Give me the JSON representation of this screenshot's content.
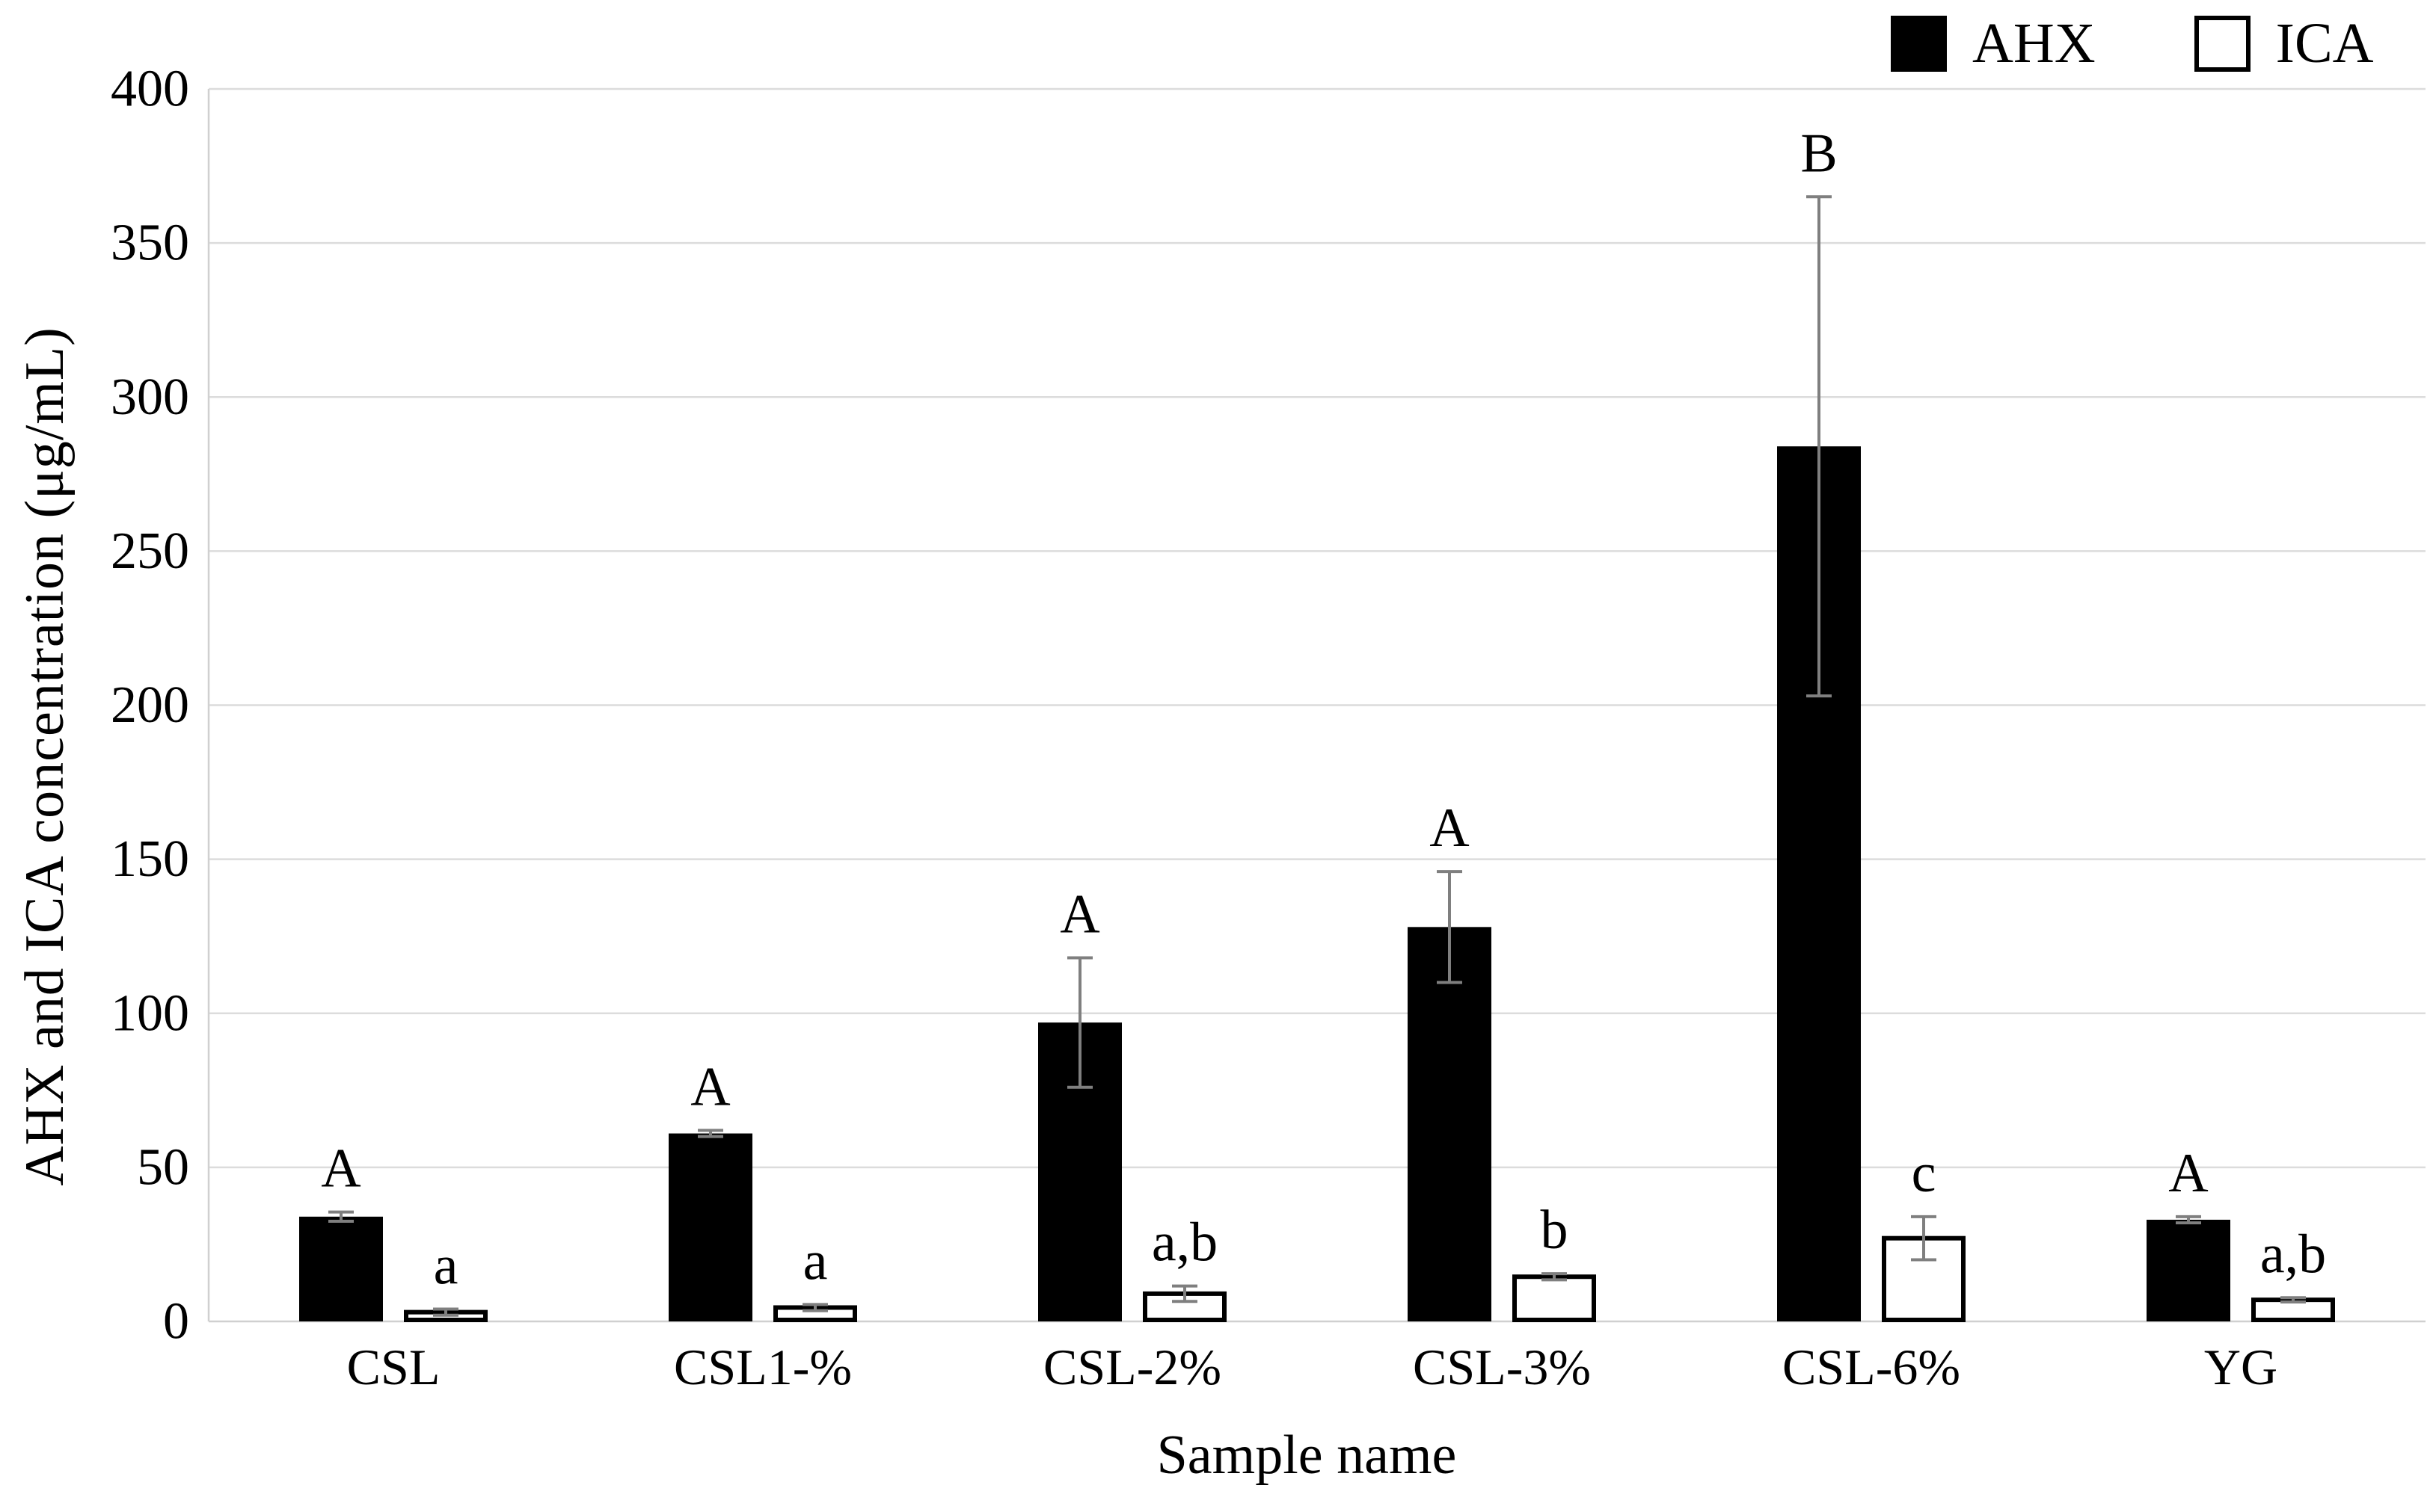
{
  "figure": {
    "kind": "grouped bar chart with error bars and significance letters"
  },
  "legend": {
    "items": [
      {
        "label": "AHX",
        "swatch_color": "#000000",
        "swatch_border": "#000000"
      },
      {
        "label": "ICA",
        "swatch_color": "#ffffff",
        "swatch_border": "#000000"
      }
    ]
  },
  "colors": {
    "ahx_bar": "#000000",
    "ica_bar_fill": "#ffffff",
    "ica_bar_border": "#000000",
    "gridline": "#dcdcdc",
    "axis_line": "#d0d0d0",
    "error_bar": "#7f7f7f",
    "text": "#000000"
  },
  "chart_data": {
    "type": "bar",
    "title": "",
    "xlabel": "Sample name",
    "ylabel": "AHX and ICA concentration  (μg/mL)",
    "categories": [
      "CSL",
      "CSL1-%",
      "CSL-2%",
      "CSL-3%",
      "CSL-6%",
      "YG"
    ],
    "series": [
      {
        "name": "AHX",
        "color": "#000000",
        "values": [
          34,
          61,
          97,
          128,
          284,
          33
        ],
        "errors": [
          1.5,
          1,
          21,
          18,
          81,
          1
        ],
        "letters": [
          "A",
          "A",
          "A",
          "A",
          "B",
          "A"
        ]
      },
      {
        "name": "ICA",
        "color": "#ffffff",
        "values": [
          3,
          4.5,
          9,
          14.5,
          27,
          7
        ],
        "errors": [
          1,
          1,
          2.5,
          1,
          7,
          0.7
        ],
        "letters": [
          "a",
          "a",
          "a,b",
          "b",
          "c",
          "a,b"
        ]
      }
    ],
    "ylim": [
      0,
      400
    ],
    "ytick_step": 50,
    "yticks": [
      0,
      50,
      100,
      150,
      200,
      250,
      300,
      350,
      400
    ],
    "grid": true,
    "legend_position": "top-right",
    "units": "μg/mL"
  }
}
